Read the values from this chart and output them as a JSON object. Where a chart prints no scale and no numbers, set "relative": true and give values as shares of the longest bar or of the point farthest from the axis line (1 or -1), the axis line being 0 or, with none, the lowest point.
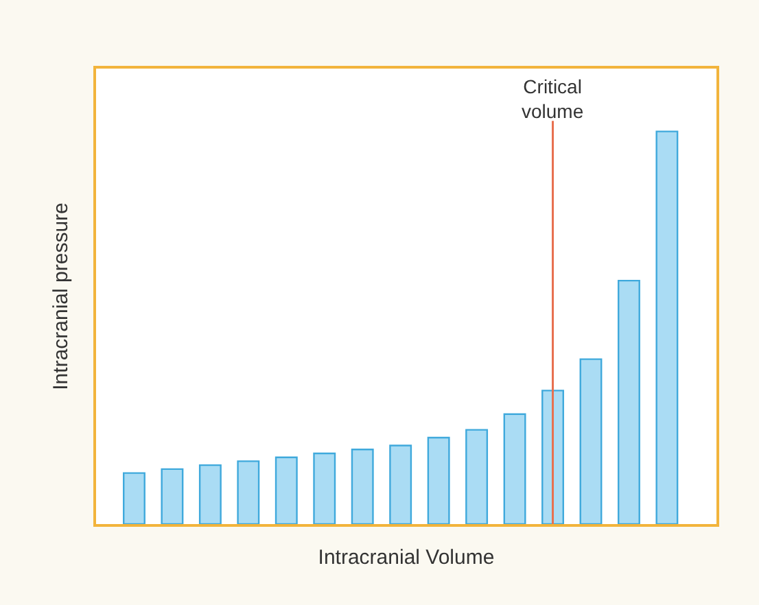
{
  "chart_data": {
    "type": "bar",
    "relative": true,
    "xlabel": "Intracranial Volume",
    "ylabel": "Intracranial pressure",
    "categories": [
      null,
      null,
      null,
      null,
      null,
      null,
      null,
      null,
      null,
      null,
      null,
      null,
      null,
      null,
      null
    ],
    "values": [
      0.13,
      0.14,
      0.15,
      0.16,
      0.17,
      0.18,
      0.19,
      0.2,
      0.22,
      0.24,
      0.28,
      0.34,
      0.42,
      0.62,
      1
    ],
    "color": "#aadcf4",
    "annotations": [
      "Critical\nvolume"
    ]
  }
}
